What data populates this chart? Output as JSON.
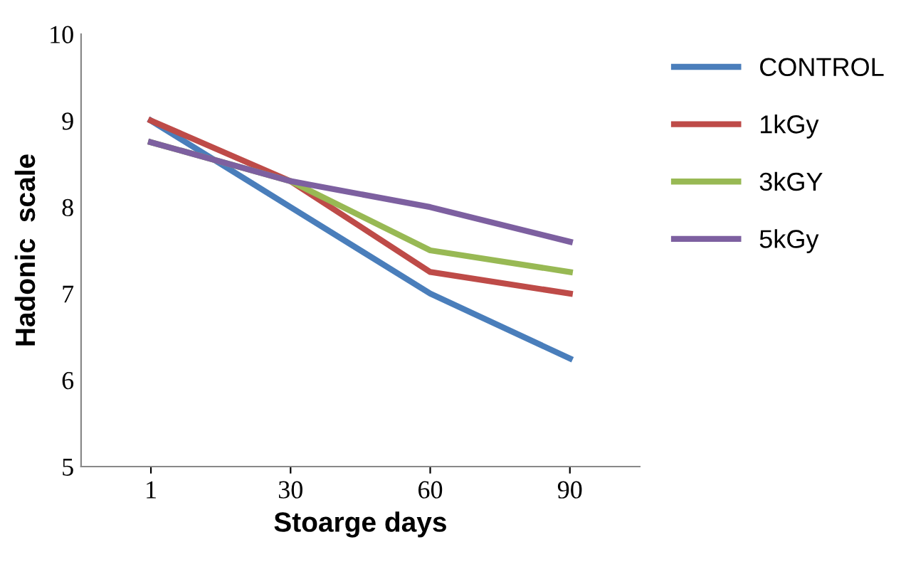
{
  "chart_data": {
    "type": "line",
    "xlabel": "Stoarge days",
    "ylabel": "Hadonic  scale",
    "categories": [
      "1",
      "30",
      "60",
      "90"
    ],
    "series": [
      {
        "name": "CONTROL",
        "color": "#4a7ebb",
        "values": [
          9.0,
          8.0,
          7.0,
          6.25
        ]
      },
      {
        "name": "1kGy",
        "color": "#be4b48",
        "values": [
          9.0,
          8.3,
          7.25,
          7.0
        ]
      },
      {
        "name": "3kGY",
        "color": "#98b954",
        "values": [
          8.75,
          8.3,
          7.5,
          7.25
        ]
      },
      {
        "name": "5kGy",
        "color": "#7d60a0",
        "values": [
          8.75,
          8.3,
          8.0,
          7.6
        ]
      }
    ],
    "ylim": [
      5,
      10
    ],
    "yticks": [
      5,
      6,
      7,
      8,
      9,
      10
    ],
    "grid": false,
    "legend": "top right",
    "marker": "none",
    "line_style": "solid"
  }
}
